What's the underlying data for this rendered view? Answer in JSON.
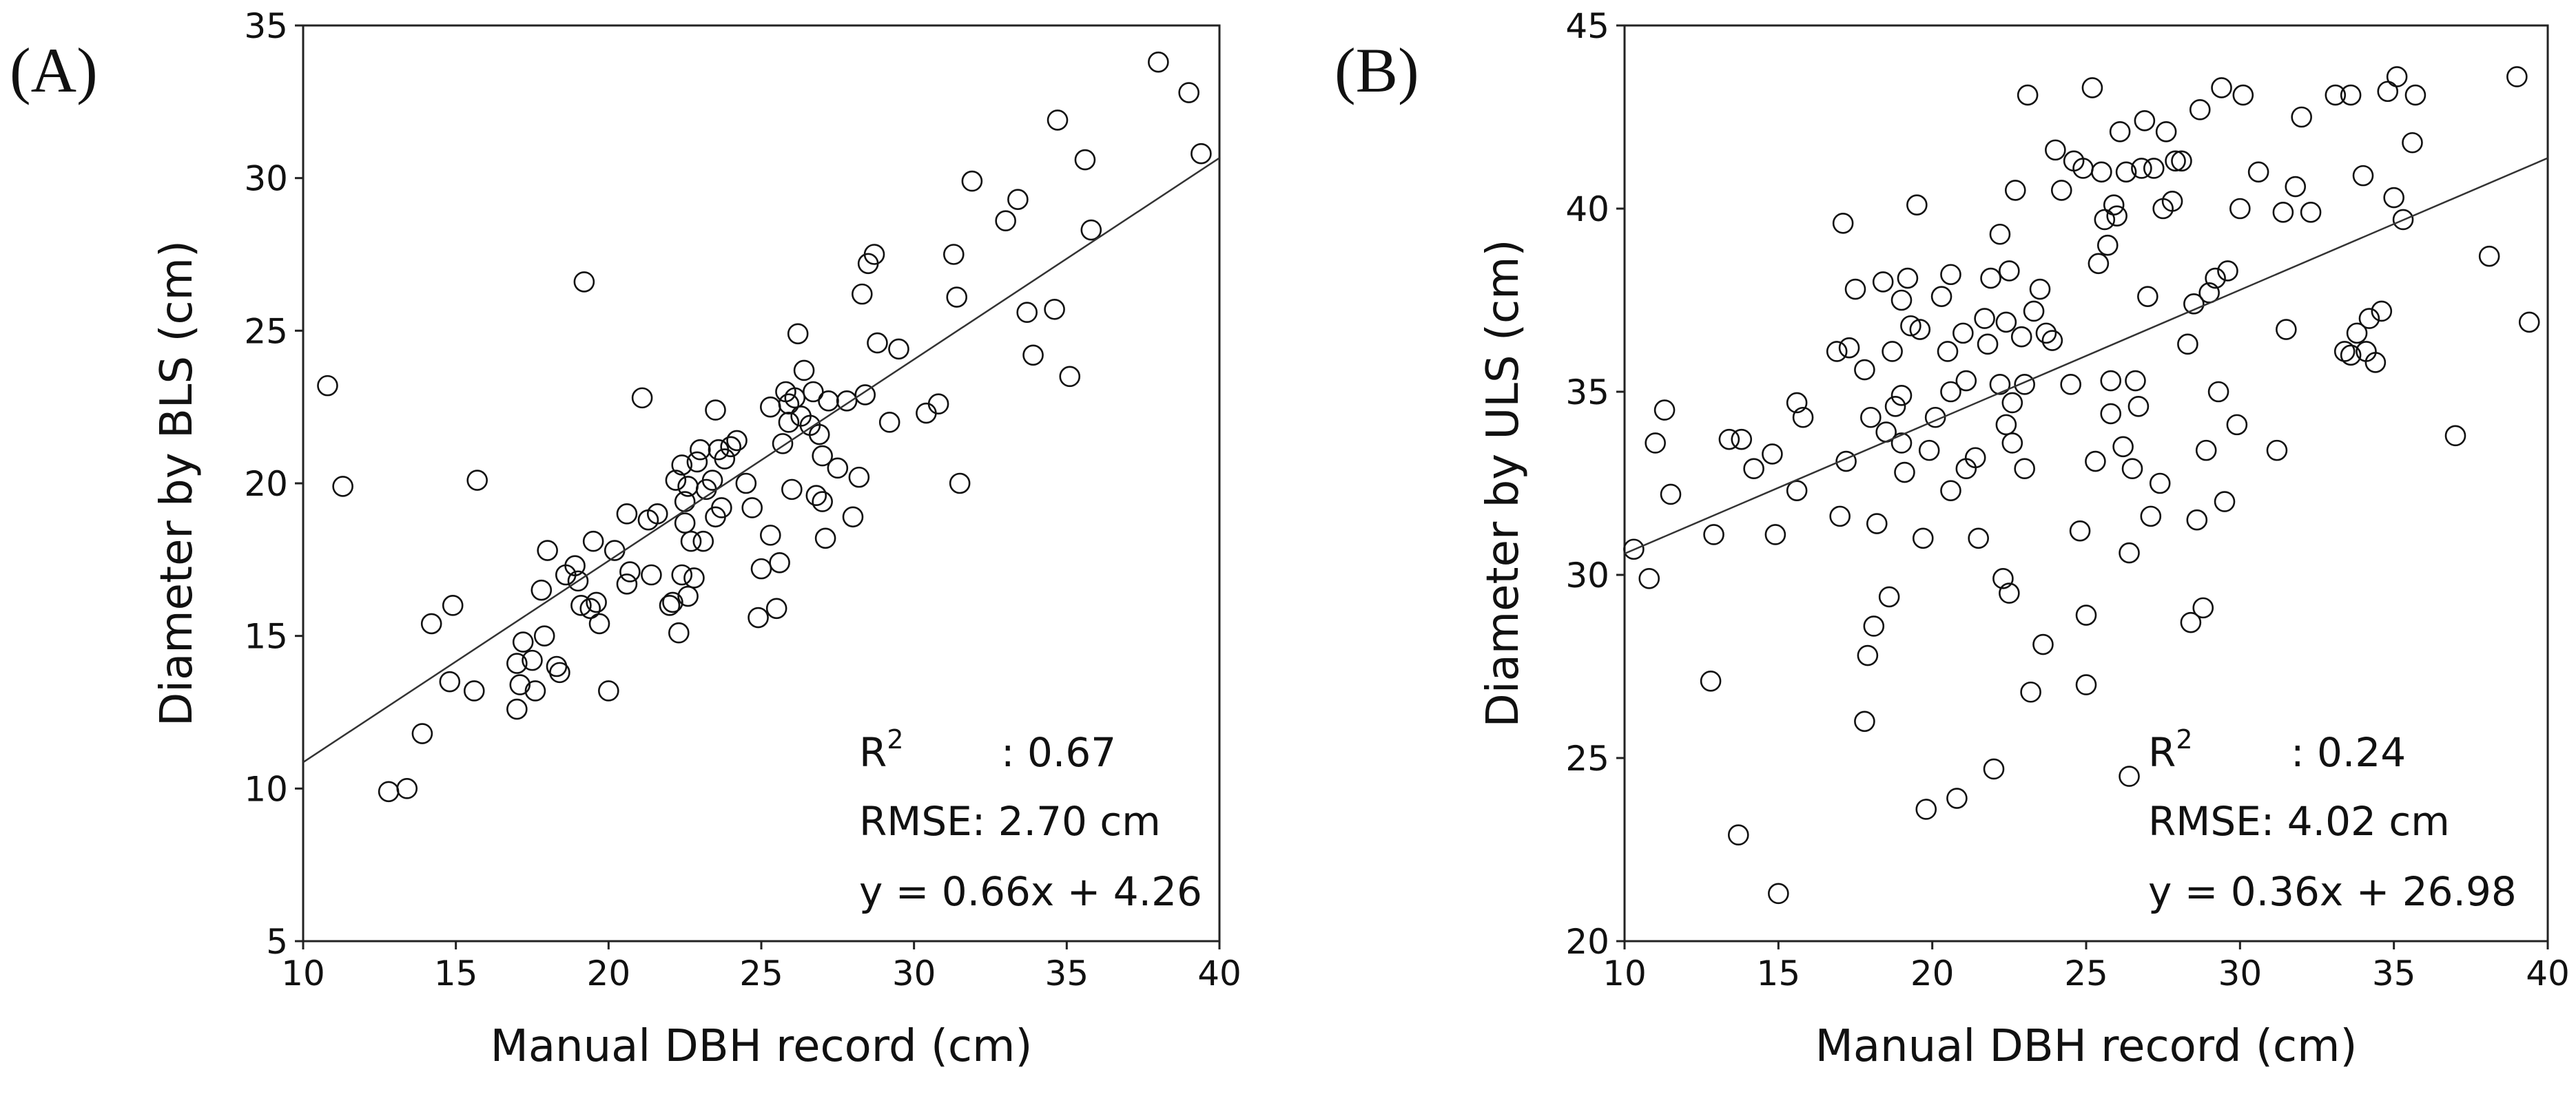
{
  "chart_data": [
    {
      "type": "scatter",
      "panel_label": "(A)",
      "title": "",
      "xlabel": "Manual DBH record (cm)",
      "ylabel": "Diameter by BLS (cm)",
      "xlim": [
        10,
        40
      ],
      "ylim": [
        5,
        35
      ],
      "xticks": [
        10,
        15,
        20,
        25,
        30,
        35,
        40
      ],
      "yticks": [
        5,
        10,
        15,
        20,
        25,
        30,
        35
      ],
      "grid": false,
      "regression": {
        "slope": 0.66,
        "intercept": 4.26,
        "x_range": [
          10,
          40
        ]
      },
      "stats": {
        "r2_label": "R",
        "r2_sup": "2",
        "r2_value": ": 0.67",
        "rmse": "RMSE: 2.70 cm",
        "equation": "y = 0.66x + 4.26"
      },
      "points": [
        [
          10.8,
          23.2
        ],
        [
          11.3,
          19.9
        ],
        [
          12.8,
          9.9
        ],
        [
          13.4,
          10.0
        ],
        [
          13.9,
          11.8
        ],
        [
          14.2,
          15.4
        ],
        [
          14.8,
          13.5
        ],
        [
          14.9,
          16.0
        ],
        [
          15.6,
          13.2
        ],
        [
          15.7,
          20.1
        ],
        [
          17.0,
          14.1
        ],
        [
          17.0,
          12.6
        ],
        [
          17.1,
          13.4
        ],
        [
          17.2,
          14.8
        ],
        [
          17.5,
          14.2
        ],
        [
          17.6,
          13.2
        ],
        [
          17.8,
          16.5
        ],
        [
          17.9,
          15.0
        ],
        [
          18.0,
          17.8
        ],
        [
          18.3,
          14.0
        ],
        [
          18.4,
          13.8
        ],
        [
          18.6,
          17.0
        ],
        [
          18.9,
          17.3
        ],
        [
          19.0,
          16.8
        ],
        [
          19.1,
          16.0
        ],
        [
          19.2,
          26.6
        ],
        [
          19.4,
          15.9
        ],
        [
          19.5,
          18.1
        ],
        [
          19.6,
          16.1
        ],
        [
          19.7,
          15.4
        ],
        [
          20.0,
          13.2
        ],
        [
          20.2,
          17.8
        ],
        [
          20.6,
          19.0
        ],
        [
          20.6,
          16.7
        ],
        [
          20.7,
          17.1
        ],
        [
          21.1,
          22.8
        ],
        [
          21.3,
          18.8
        ],
        [
          21.4,
          17.0
        ],
        [
          21.6,
          19.0
        ],
        [
          22.0,
          16.0
        ],
        [
          22.1,
          16.1
        ],
        [
          22.2,
          20.1
        ],
        [
          22.3,
          15.1
        ],
        [
          22.4,
          17.0
        ],
        [
          22.4,
          20.6
        ],
        [
          22.5,
          19.4
        ],
        [
          22.5,
          18.7
        ],
        [
          22.6,
          19.9
        ],
        [
          22.6,
          16.3
        ],
        [
          22.7,
          18.1
        ],
        [
          22.8,
          16.9
        ],
        [
          22.9,
          20.7
        ],
        [
          23.0,
          21.1
        ],
        [
          23.1,
          18.1
        ],
        [
          23.2,
          19.8
        ],
        [
          23.4,
          20.1
        ],
        [
          23.5,
          22.4
        ],
        [
          23.5,
          18.9
        ],
        [
          23.6,
          21.1
        ],
        [
          23.7,
          19.2
        ],
        [
          23.8,
          20.8
        ],
        [
          24.0,
          21.2
        ],
        [
          24.2,
          21.4
        ],
        [
          24.5,
          20.0
        ],
        [
          24.7,
          19.2
        ],
        [
          24.9,
          15.6
        ],
        [
          25.0,
          17.2
        ],
        [
          25.3,
          22.5
        ],
        [
          25.3,
          18.3
        ],
        [
          25.5,
          15.9
        ],
        [
          25.6,
          17.4
        ],
        [
          25.7,
          21.3
        ],
        [
          25.8,
          23.0
        ],
        [
          25.9,
          22.6
        ],
        [
          25.9,
          22.0
        ],
        [
          26.0,
          19.8
        ],
        [
          26.1,
          22.8
        ],
        [
          26.2,
          24.9
        ],
        [
          26.3,
          22.2
        ],
        [
          26.4,
          23.7
        ],
        [
          26.6,
          21.9
        ],
        [
          26.7,
          23.0
        ],
        [
          26.8,
          19.6
        ],
        [
          26.9,
          21.6
        ],
        [
          27.0,
          20.9
        ],
        [
          27.0,
          19.4
        ],
        [
          27.1,
          18.2
        ],
        [
          27.2,
          22.7
        ],
        [
          27.5,
          20.5
        ],
        [
          27.8,
          22.7
        ],
        [
          28.0,
          18.9
        ],
        [
          28.2,
          20.2
        ],
        [
          28.3,
          26.2
        ],
        [
          28.4,
          22.9
        ],
        [
          28.5,
          27.2
        ],
        [
          28.7,
          27.5
        ],
        [
          28.8,
          24.6
        ],
        [
          29.2,
          22.0
        ],
        [
          29.5,
          24.4
        ],
        [
          30.4,
          22.3
        ],
        [
          30.8,
          22.6
        ],
        [
          31.3,
          27.5
        ],
        [
          31.4,
          26.1
        ],
        [
          31.5,
          20.0
        ],
        [
          31.9,
          29.9
        ],
        [
          33.0,
          28.6
        ],
        [
          33.4,
          29.3
        ],
        [
          33.7,
          25.6
        ],
        [
          33.9,
          24.2
        ],
        [
          34.6,
          25.7
        ],
        [
          34.7,
          31.9
        ],
        [
          35.1,
          23.5
        ],
        [
          35.6,
          30.6
        ],
        [
          35.8,
          28.3
        ],
        [
          38.0,
          33.8
        ],
        [
          39.0,
          32.8
        ],
        [
          39.4,
          30.8
        ]
      ]
    },
    {
      "type": "scatter",
      "panel_label": "(B)",
      "title": "",
      "xlabel": "Manual DBH record (cm)",
      "ylabel": "Diameter by ULS (cm)",
      "xlim": [
        10,
        40
      ],
      "ylim": [
        20,
        45
      ],
      "xticks": [
        10,
        15,
        20,
        25,
        30,
        35,
        40
      ],
      "yticks": [
        20,
        25,
        30,
        35,
        40,
        45
      ],
      "grid": false,
      "regression": {
        "slope": 0.36,
        "intercept": 26.98,
        "x_range": [
          10,
          40
        ]
      },
      "stats": {
        "r2_label": "R",
        "r2_sup": "2",
        "r2_value": ": 0.24",
        "rmse": "RMSE: 4.02 cm",
        "equation": "y = 0.36x + 26.98"
      },
      "points": [
        [
          10.3,
          30.7
        ],
        [
          10.8,
          29.9
        ],
        [
          11.0,
          33.6
        ],
        [
          11.3,
          34.5
        ],
        [
          11.5,
          32.2
        ],
        [
          12.8,
          27.1
        ],
        [
          12.9,
          31.1
        ],
        [
          13.4,
          33.7
        ],
        [
          13.7,
          22.9
        ],
        [
          13.8,
          33.7
        ],
        [
          14.2,
          32.9
        ],
        [
          14.8,
          33.3
        ],
        [
          14.9,
          31.1
        ],
        [
          15.0,
          21.3
        ],
        [
          15.6,
          32.3
        ],
        [
          15.6,
          34.7
        ],
        [
          15.8,
          34.3
        ],
        [
          16.9,
          36.1
        ],
        [
          17.0,
          31.6
        ],
        [
          17.1,
          39.6
        ],
        [
          17.2,
          33.1
        ],
        [
          17.3,
          36.2
        ],
        [
          17.5,
          37.8
        ],
        [
          17.8,
          35.6
        ],
        [
          17.8,
          26.0
        ],
        [
          17.9,
          27.8
        ],
        [
          18.0,
          34.3
        ],
        [
          18.1,
          28.6
        ],
        [
          18.2,
          31.4
        ],
        [
          18.4,
          38.0
        ],
        [
          18.5,
          33.9
        ],
        [
          18.6,
          29.4
        ],
        [
          18.7,
          36.1
        ],
        [
          18.8,
          34.6
        ],
        [
          19.0,
          37.5
        ],
        [
          19.0,
          33.6
        ],
        [
          19.0,
          34.9
        ],
        [
          19.1,
          32.8
        ],
        [
          19.2,
          38.1
        ],
        [
          19.3,
          36.8
        ],
        [
          19.5,
          40.1
        ],
        [
          19.6,
          36.7
        ],
        [
          19.7,
          31.0
        ],
        [
          19.8,
          23.6
        ],
        [
          19.9,
          33.4
        ],
        [
          20.1,
          34.3
        ],
        [
          20.3,
          37.6
        ],
        [
          20.5,
          36.1
        ],
        [
          20.6,
          32.3
        ],
        [
          20.6,
          35.0
        ],
        [
          20.6,
          38.2
        ],
        [
          20.8,
          23.9
        ],
        [
          21.0,
          36.6
        ],
        [
          21.1,
          32.9
        ],
        [
          21.1,
          35.3
        ],
        [
          21.4,
          33.2
        ],
        [
          21.5,
          31.0
        ],
        [
          21.7,
          37.0
        ],
        [
          21.8,
          36.3
        ],
        [
          21.9,
          38.1
        ],
        [
          22.0,
          24.7
        ],
        [
          22.2,
          35.2
        ],
        [
          22.2,
          39.3
        ],
        [
          22.3,
          29.9
        ],
        [
          22.4,
          36.9
        ],
        [
          22.4,
          34.1
        ],
        [
          22.5,
          38.3
        ],
        [
          22.5,
          29.5
        ],
        [
          22.6,
          34.7
        ],
        [
          22.6,
          33.6
        ],
        [
          22.7,
          40.5
        ],
        [
          22.9,
          36.5
        ],
        [
          23.0,
          35.2
        ],
        [
          23.0,
          32.9
        ],
        [
          23.1,
          43.1
        ],
        [
          23.2,
          26.8
        ],
        [
          23.3,
          37.2
        ],
        [
          23.5,
          37.8
        ],
        [
          23.6,
          28.1
        ],
        [
          23.7,
          36.6
        ],
        [
          23.9,
          36.4
        ],
        [
          24.0,
          41.6
        ],
        [
          24.2,
          40.5
        ],
        [
          24.5,
          35.2
        ],
        [
          24.6,
          41.3
        ],
        [
          24.8,
          31.2
        ],
        [
          24.9,
          41.1
        ],
        [
          25.0,
          28.9
        ],
        [
          25.0,
          27.0
        ],
        [
          25.2,
          43.3
        ],
        [
          25.3,
          33.1
        ],
        [
          25.4,
          38.5
        ],
        [
          25.5,
          41.0
        ],
        [
          25.6,
          39.7
        ],
        [
          25.7,
          39.0
        ],
        [
          25.8,
          35.3
        ],
        [
          25.8,
          34.4
        ],
        [
          25.9,
          40.1
        ],
        [
          26.0,
          39.8
        ],
        [
          26.1,
          42.1
        ],
        [
          26.2,
          33.5
        ],
        [
          26.3,
          41.0
        ],
        [
          26.4,
          24.5
        ],
        [
          26.4,
          30.6
        ],
        [
          26.5,
          32.9
        ],
        [
          26.6,
          35.3
        ],
        [
          26.7,
          34.6
        ],
        [
          26.8,
          41.1
        ],
        [
          26.9,
          42.4
        ],
        [
          27.0,
          37.6
        ],
        [
          27.1,
          31.6
        ],
        [
          27.2,
          41.1
        ],
        [
          27.4,
          32.5
        ],
        [
          27.5,
          40.0
        ],
        [
          27.6,
          42.1
        ],
        [
          27.8,
          40.2
        ],
        [
          27.9,
          41.3
        ],
        [
          28.1,
          41.3
        ],
        [
          28.3,
          36.3
        ],
        [
          28.4,
          28.7
        ],
        [
          28.5,
          37.4
        ],
        [
          28.6,
          31.5
        ],
        [
          28.7,
          42.7
        ],
        [
          28.8,
          29.1
        ],
        [
          28.9,
          33.4
        ],
        [
          29.0,
          37.7
        ],
        [
          29.2,
          38.1
        ],
        [
          29.3,
          35.0
        ],
        [
          29.4,
          43.3
        ],
        [
          29.5,
          32.0
        ],
        [
          29.6,
          38.3
        ],
        [
          29.9,
          34.1
        ],
        [
          30.0,
          40.0
        ],
        [
          30.1,
          43.1
        ],
        [
          30.6,
          41.0
        ],
        [
          31.2,
          33.4
        ],
        [
          31.4,
          39.9
        ],
        [
          31.5,
          36.7
        ],
        [
          31.8,
          40.6
        ],
        [
          32.0,
          42.5
        ],
        [
          32.3,
          39.9
        ],
        [
          33.1,
          43.1
        ],
        [
          33.4,
          36.1
        ],
        [
          33.6,
          43.1
        ],
        [
          33.6,
          36.0
        ],
        [
          33.8,
          36.6
        ],
        [
          34.0,
          40.9
        ],
        [
          34.1,
          36.1
        ],
        [
          34.2,
          37.0
        ],
        [
          34.4,
          35.8
        ],
        [
          34.6,
          37.2
        ],
        [
          34.8,
          43.2
        ],
        [
          35.0,
          40.3
        ],
        [
          35.1,
          43.6
        ],
        [
          35.3,
          39.7
        ],
        [
          35.6,
          41.8
        ],
        [
          35.7,
          43.1
        ],
        [
          37.0,
          33.8
        ],
        [
          38.1,
          38.7
        ],
        [
          39.0,
          43.6
        ],
        [
          39.4,
          36.9
        ]
      ]
    }
  ]
}
